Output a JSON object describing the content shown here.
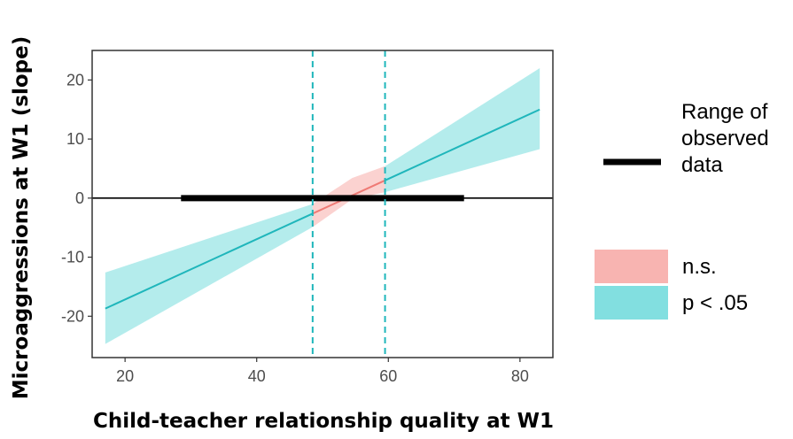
{
  "chart_data": {
    "type": "line",
    "xlabel": "Child-teacher relationship quality at W1",
    "ylabel": "Microaggressions at W1 (slope)",
    "xlim": [
      15,
      85
    ],
    "ylim": [
      -27,
      25
    ],
    "xticks": [
      20,
      40,
      60,
      80
    ],
    "yticks": [
      20,
      10,
      0,
      -10,
      -20
    ],
    "grid": false,
    "zero_line": 0,
    "x_range": [
      17,
      83
    ],
    "slope_line": {
      "x": [
        17,
        83
      ],
      "y": [
        -18.7,
        15.0
      ]
    },
    "confidence_band": {
      "x": [
        17,
        48.5,
        54.5,
        59.5,
        83
      ],
      "lower": [
        -24.7,
        -4.9,
        -0.2,
        1.0,
        8.3
      ],
      "upper": [
        -12.6,
        -1.0,
        3.4,
        5.4,
        22.0
      ]
    },
    "significance_regions": [
      {
        "label": "p < .05",
        "from": 17,
        "to": 48.5,
        "color": "#82dfe0"
      },
      {
        "label": "n.s.",
        "from": 48.5,
        "to": 59.5,
        "color": "#f8b4b1"
      },
      {
        "label": "p < .05",
        "from": 59.5,
        "to": 83,
        "color": "#82dfe0"
      }
    ],
    "line_colors": {
      "significant": "#1fb6bb",
      "not_significant": "#ef7a75"
    },
    "johnson_neyman_points": [
      48.5,
      59.5
    ],
    "observed_range": [
      28.5,
      71.5
    ],
    "legend": {
      "range_label": [
        "Range of",
        "observed",
        "data"
      ],
      "items": [
        {
          "label": "n.s.",
          "color": "#f8b4b1"
        },
        {
          "label": "p < .05",
          "color": "#82dfe0"
        }
      ]
    }
  }
}
